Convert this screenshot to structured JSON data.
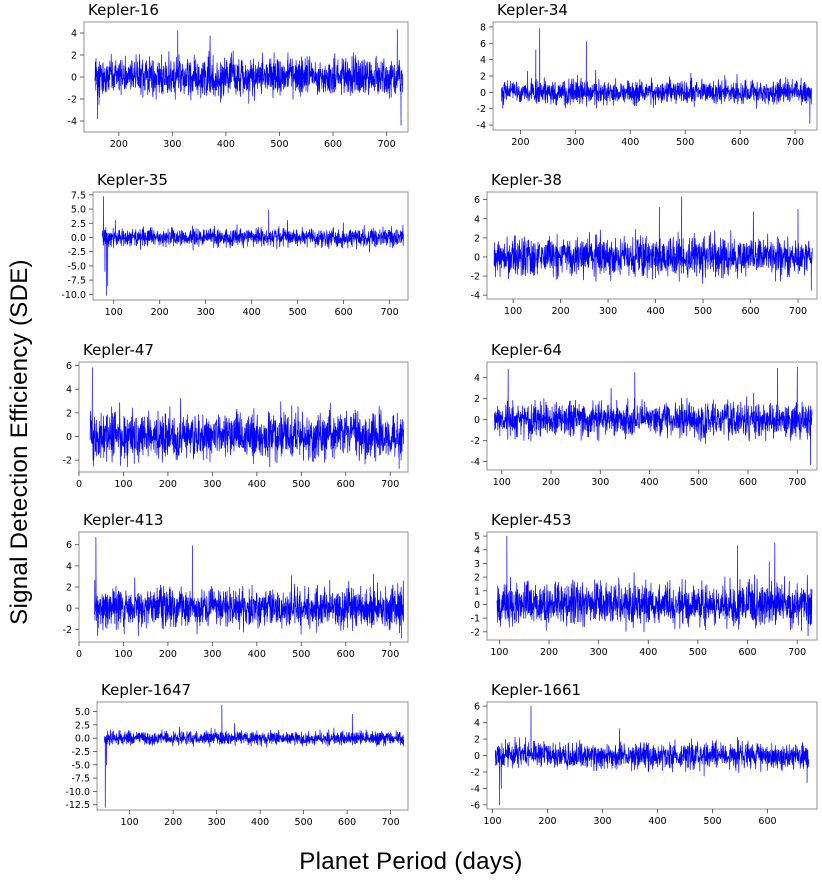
{
  "figure": {
    "ylabel": "Signal Detection Efficiency (SDE)",
    "xlabel": "Planet Period (days)"
  },
  "chart_data": [
    {
      "type": "line",
      "title": "Kepler-16",
      "xlabel": "",
      "ylabel": "",
      "x_range": [
        155,
        730
      ],
      "xlim": [
        135,
        740
      ],
      "xticks": [
        200,
        300,
        400,
        500,
        600,
        700
      ],
      "ylim": [
        -5,
        5
      ],
      "yticks": [
        -4,
        -2,
        0,
        2,
        4
      ],
      "series": [
        {
          "name": "SDE",
          "color": "#0000ff",
          "seed": 16,
          "amp": 1.1,
          "min": -4.4,
          "max": 4.3,
          "features": [
            {
              "x": 160,
              "y": -3.8
            },
            {
              "x": 163,
              "y": -2.5
            },
            {
              "x": 310,
              "y": 4.2
            },
            {
              "x": 720,
              "y": 4.3
            },
            {
              "x": 727,
              "y": -4.4
            }
          ]
        }
      ]
    },
    {
      "type": "line",
      "title": "Kepler-34",
      "xlabel": "",
      "ylabel": "",
      "x_range": [
        165,
        730
      ],
      "xlim": [
        150,
        740
      ],
      "xticks": [
        200,
        300,
        400,
        500,
        600,
        700
      ],
      "ylim": [
        -4.6,
        8.6
      ],
      "yticks": [
        -4,
        -2,
        0,
        2,
        4,
        6,
        8
      ],
      "series": [
        {
          "name": "SDE",
          "color": "#0000ff",
          "seed": 34,
          "amp": 0.9,
          "min": -3.8,
          "max": 7.8,
          "features": [
            {
              "x": 235,
              "y": 7.8
            },
            {
              "x": 228,
              "y": 5.2
            },
            {
              "x": 320,
              "y": 6.2
            },
            {
              "x": 727,
              "y": -3.8
            }
          ]
        }
      ]
    },
    {
      "type": "line",
      "title": "Kepler-35",
      "xlabel": "",
      "ylabel": "",
      "x_range": [
        75,
        730
      ],
      "xlim": [
        55,
        740
      ],
      "xticks": [
        100,
        200,
        300,
        400,
        500,
        600,
        700
      ],
      "ylim": [
        -11,
        8
      ],
      "yticks": [
        -10.0,
        -7.5,
        -5.0,
        -2.5,
        0.0,
        2.5,
        5.0,
        7.5
      ],
      "series": [
        {
          "name": "SDE",
          "color": "#0000ff",
          "seed": 35,
          "amp": 1.0,
          "min": -10.2,
          "max": 7.2,
          "features": [
            {
              "x": 78,
              "y": 7.2
            },
            {
              "x": 81,
              "y": -6.0
            },
            {
              "x": 84,
              "y": -10.2
            },
            {
              "x": 87,
              "y": -8.5
            },
            {
              "x": 437,
              "y": 4.8
            }
          ]
        }
      ]
    },
    {
      "type": "line",
      "title": "Kepler-38",
      "xlabel": "",
      "ylabel": "",
      "x_range": [
        60,
        730
      ],
      "xlim": [
        45,
        740
      ],
      "xticks": [
        100,
        200,
        300,
        400,
        500,
        600,
        700
      ],
      "ylim": [
        -4.4,
        6.8
      ],
      "yticks": [
        -4,
        -2,
        0,
        2,
        4,
        6
      ],
      "series": [
        {
          "name": "SDE",
          "color": "#0000ff",
          "seed": 38,
          "amp": 1.3,
          "min": -3.6,
          "max": 6.3,
          "features": [
            {
              "x": 455,
              "y": 6.3
            },
            {
              "x": 408,
              "y": 5.2
            },
            {
              "x": 700,
              "y": 5.0
            },
            {
              "x": 728,
              "y": -3.5
            }
          ]
        }
      ]
    },
    {
      "type": "line",
      "title": "Kepler-47",
      "xlabel": "",
      "ylabel": "",
      "x_range": [
        25,
        730
      ],
      "xlim": [
        0,
        740
      ],
      "xticks": [
        0,
        100,
        200,
        300,
        400,
        500,
        600,
        700
      ],
      "ylim": [
        -3,
        6.3
      ],
      "yticks": [
        -2,
        0,
        2,
        4,
        6
      ],
      "series": [
        {
          "name": "SDE",
          "color": "#0000ff",
          "seed": 47,
          "amp": 1.2,
          "min": -2.8,
          "max": 5.8,
          "features": [
            {
              "x": 30,
              "y": 5.8
            },
            {
              "x": 33,
              "y": -2.5
            },
            {
              "x": 720,
              "y": -2.7
            }
          ]
        }
      ]
    },
    {
      "type": "line",
      "title": "Kepler-64",
      "xlabel": "",
      "ylabel": "",
      "x_range": [
        85,
        730
      ],
      "xlim": [
        70,
        740
      ],
      "xticks": [
        100,
        200,
        300,
        400,
        500,
        600,
        700
      ],
      "ylim": [
        -4.8,
        5.5
      ],
      "yticks": [
        -4,
        -2,
        0,
        2,
        4
      ],
      "series": [
        {
          "name": "SDE",
          "color": "#0000ff",
          "seed": 64,
          "amp": 1.0,
          "min": -4.3,
          "max": 5.0,
          "features": [
            {
              "x": 113,
              "y": 4.8
            },
            {
              "x": 370,
              "y": 4.5
            },
            {
              "x": 660,
              "y": 4.9
            },
            {
              "x": 700,
              "y": 5.0
            },
            {
              "x": 727,
              "y": -4.3
            }
          ]
        }
      ]
    },
    {
      "type": "line",
      "title": "Kepler-413",
      "xlabel": "",
      "ylabel": "",
      "x_range": [
        35,
        730
      ],
      "xlim": [
        0,
        740
      ],
      "xticks": [
        0,
        100,
        200,
        300,
        400,
        500,
        600,
        700
      ],
      "ylim": [
        -3.2,
        7.2
      ],
      "yticks": [
        -2,
        0,
        2,
        4,
        6
      ],
      "series": [
        {
          "name": "SDE",
          "color": "#0000ff",
          "seed": 413,
          "amp": 1.2,
          "min": -2.8,
          "max": 6.7,
          "features": [
            {
              "x": 38,
              "y": 6.7
            },
            {
              "x": 42,
              "y": -2.6
            },
            {
              "x": 255,
              "y": 5.9
            },
            {
              "x": 725,
              "y": -2.8
            }
          ]
        }
      ]
    },
    {
      "type": "line",
      "title": "Kepler-453",
      "xlabel": "",
      "ylabel": "",
      "x_range": [
        95,
        730
      ],
      "xlim": [
        75,
        740
      ],
      "xticks": [
        100,
        200,
        300,
        400,
        500,
        600,
        700
      ],
      "ylim": [
        -2.6,
        5.3
      ],
      "yticks": [
        -2,
        -1,
        0,
        1,
        2,
        3,
        4,
        5
      ],
      "series": [
        {
          "name": "SDE",
          "color": "#0000ff",
          "seed": 453,
          "amp": 1.0,
          "min": -2.3,
          "max": 5.0,
          "features": [
            {
              "x": 115,
              "y": 5.0
            },
            {
              "x": 580,
              "y": 4.3
            },
            {
              "x": 655,
              "y": 4.5
            },
            {
              "x": 722,
              "y": -2.3
            }
          ]
        }
      ]
    },
    {
      "type": "line",
      "title": "Kepler-1647",
      "xlabel": "",
      "ylabel": "",
      "x_range": [
        42,
        730
      ],
      "xlim": [
        25,
        740
      ],
      "xticks": [
        100,
        200,
        300,
        400,
        500,
        600,
        700
      ],
      "ylim": [
        -13.5,
        6.8
      ],
      "yticks": [
        -12.5,
        -10.0,
        -7.5,
        -5.0,
        -2.5,
        0.0,
        2.5,
        5.0
      ],
      "series": [
        {
          "name": "SDE",
          "color": "#0000ff",
          "seed": 1647,
          "amp": 0.8,
          "min": -13,
          "max": 6.2,
          "features": [
            {
              "x": 44,
              "y": -13.0
            },
            {
              "x": 47,
              "y": -5.0
            },
            {
              "x": 312,
              "y": 6.2
            },
            {
              "x": 612,
              "y": 4.5
            }
          ]
        }
      ]
    },
    {
      "type": "line",
      "title": "Kepler-1661",
      "xlabel": "",
      "ylabel": "",
      "x_range": [
        105,
        675
      ],
      "xlim": [
        90,
        690
      ],
      "xticks": [
        100,
        200,
        300,
        400,
        500,
        600
      ],
      "ylim": [
        -6.5,
        6.5
      ],
      "yticks": [
        -6,
        -4,
        -2,
        0,
        2,
        4,
        6
      ],
      "series": [
        {
          "name": "SDE",
          "color": "#0000ff",
          "seed": 1661,
          "amp": 1.0,
          "min": -6.0,
          "max": 6.0,
          "features": [
            {
              "x": 113,
              "y": -6.0
            },
            {
              "x": 116,
              "y": -4.0
            },
            {
              "x": 170,
              "y": 6.0
            },
            {
              "x": 672,
              "y": -3.3
            }
          ]
        }
      ]
    }
  ]
}
